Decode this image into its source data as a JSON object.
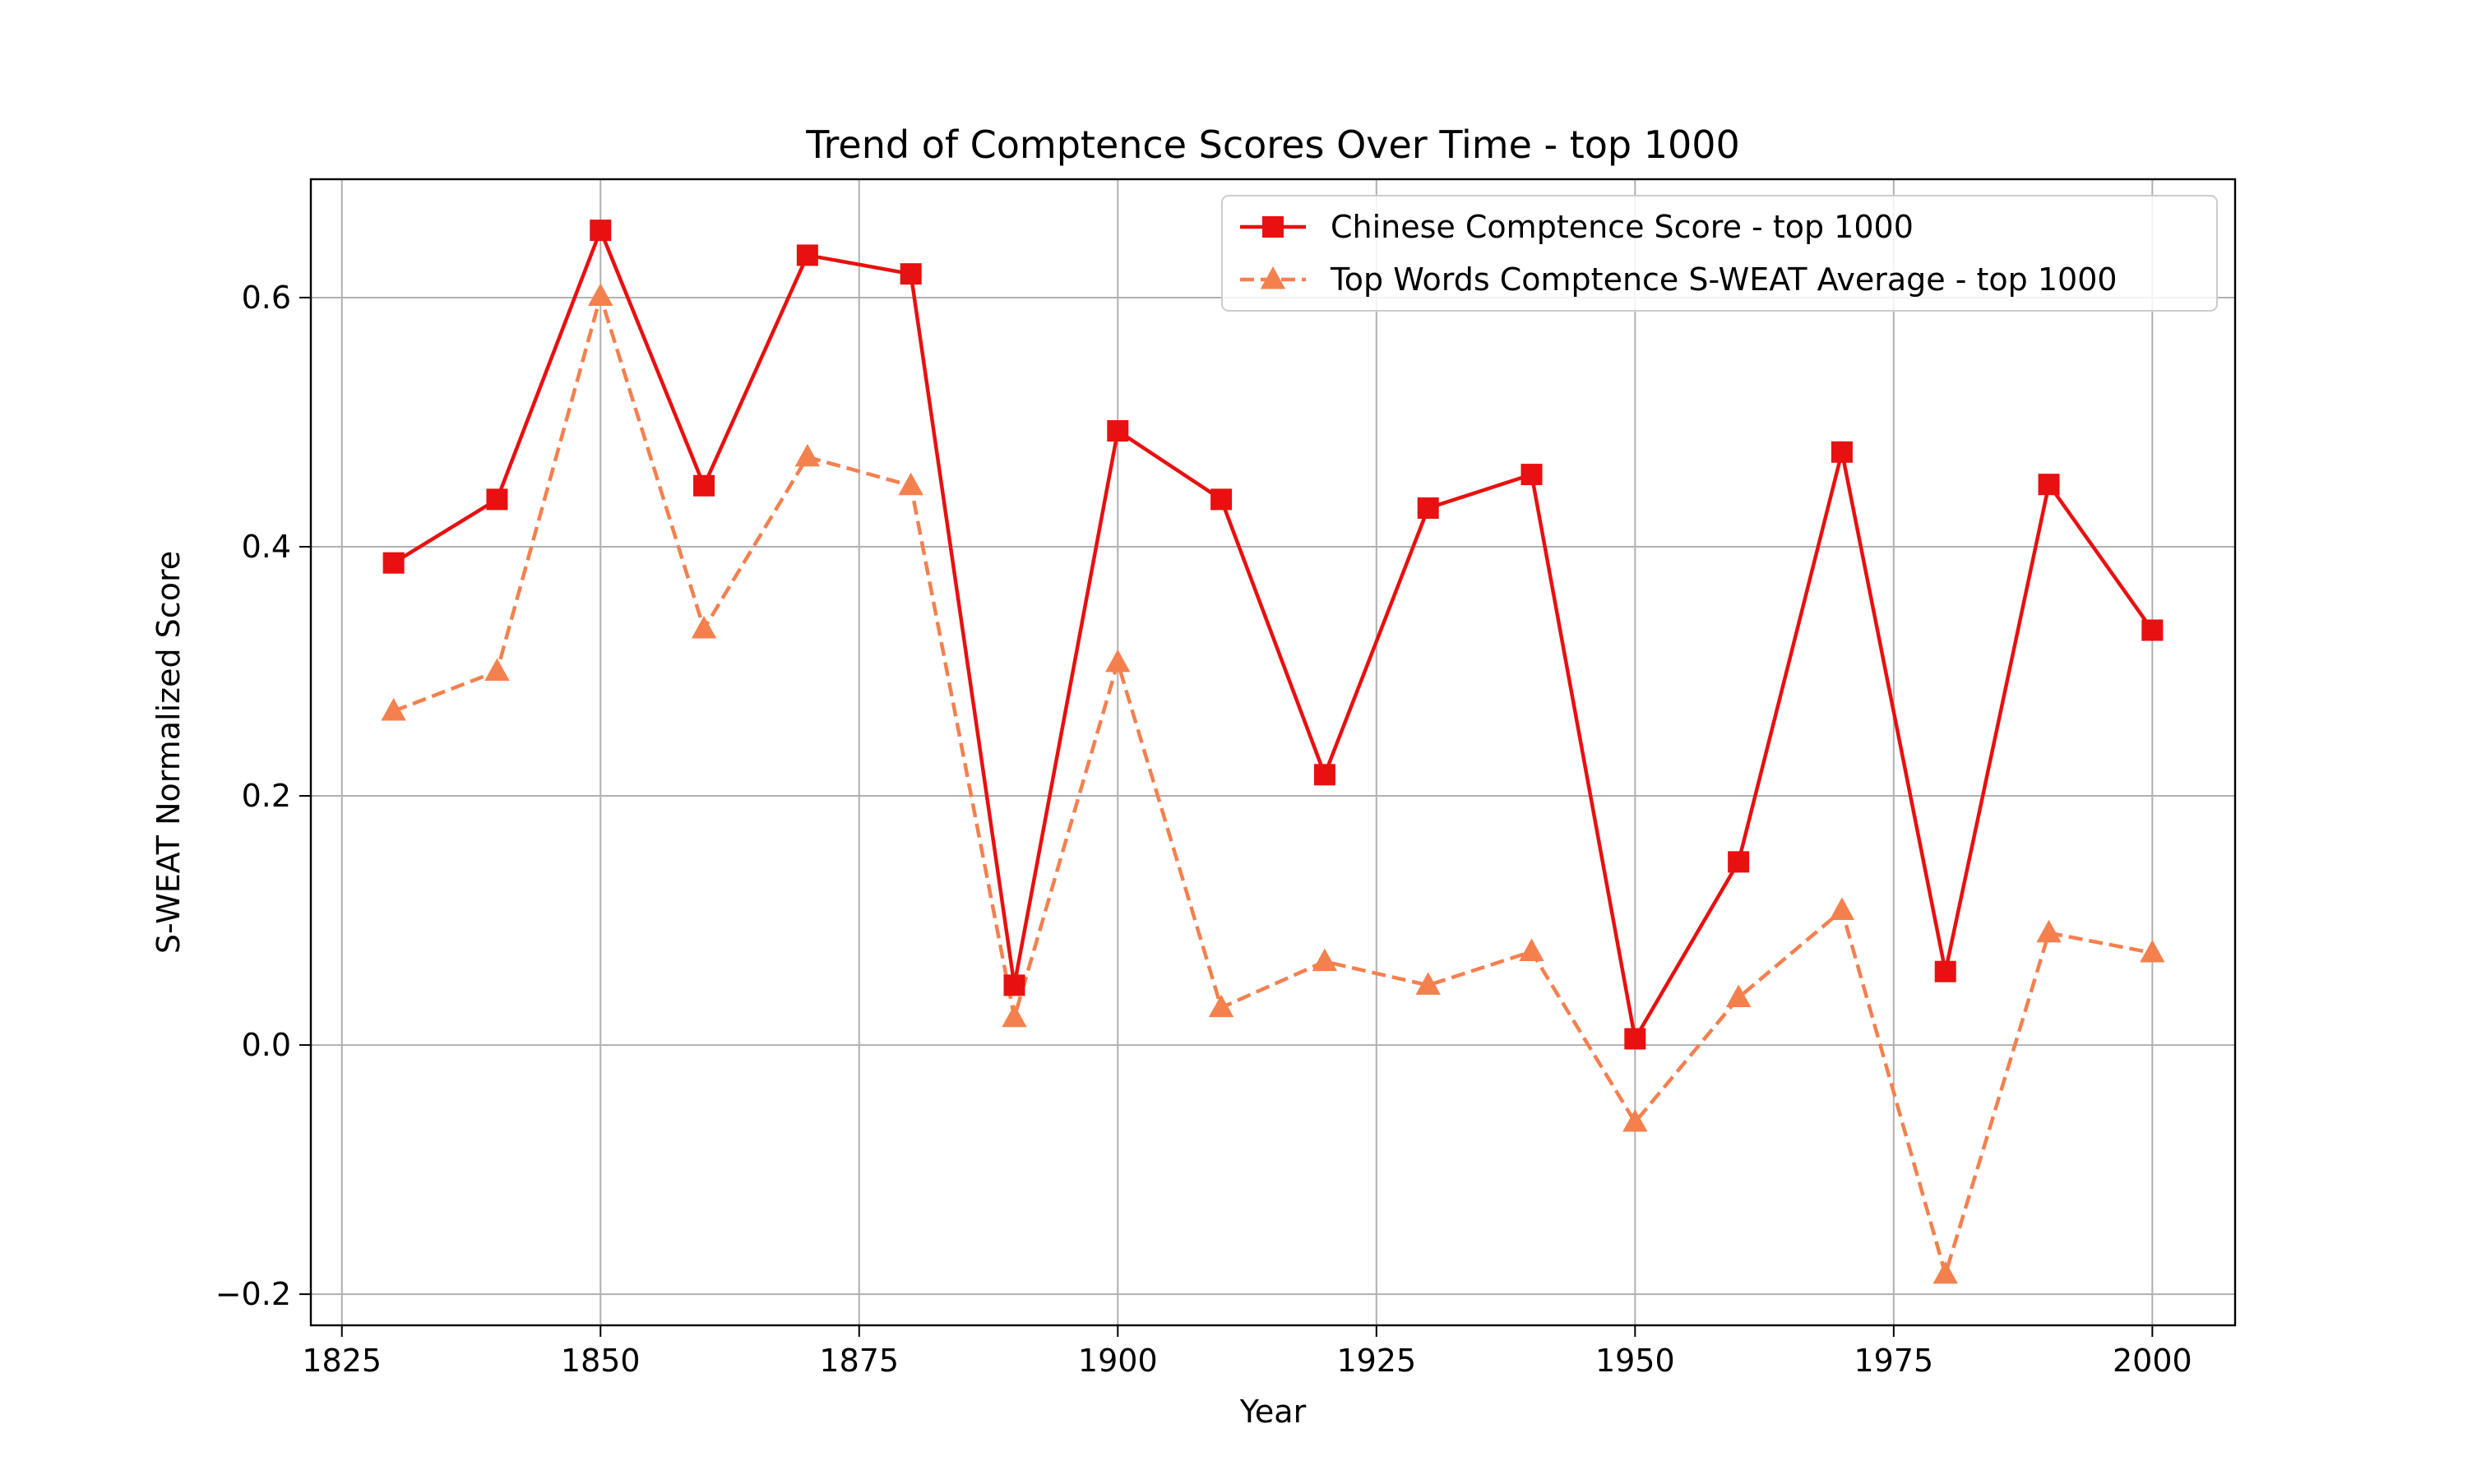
{
  "chart_data": {
    "type": "line",
    "title": "Trend of Comptence Scores Over Time - top 1000",
    "xlabel": "Year",
    "ylabel": "S-WEAT Normalized Score",
    "xlim": [
      1822,
      2008
    ],
    "ylim": [
      -0.225,
      0.695
    ],
    "xticks": [
      1825,
      1850,
      1875,
      1900,
      1925,
      1950,
      1975,
      2000
    ],
    "xtick_labels": [
      "1825",
      "1850",
      "1875",
      "1900",
      "1925",
      "1950",
      "1975",
      "2000"
    ],
    "yticks": [
      -0.2,
      0.0,
      0.2,
      0.4,
      0.6
    ],
    "ytick_labels": [
      "−0.2",
      "0.0",
      "0.2",
      "0.4",
      "0.6"
    ],
    "grid": true,
    "legend_position": "top-right",
    "x": [
      1830,
      1840,
      1850,
      1860,
      1870,
      1880,
      1890,
      1900,
      1910,
      1920,
      1930,
      1940,
      1950,
      1960,
      1970,
      1980,
      1990,
      2000
    ],
    "series": [
      {
        "name": "Chinese Comptence Score - top 1000",
        "color": "#e81010",
        "line_style": "solid",
        "marker": "square",
        "values": [
          0.387,
          0.438,
          0.654,
          0.449,
          0.634,
          0.619,
          0.048,
          0.493,
          0.438,
          0.217,
          0.431,
          0.458,
          0.005,
          0.147,
          0.476,
          0.059,
          0.45,
          0.333
        ]
      },
      {
        "name": "Top Words Comptence S-WEAT Average - top 1000",
        "color": "#f4804e",
        "line_style": "dashed",
        "marker": "triangle-up",
        "values": [
          0.268,
          0.3,
          0.601,
          0.334,
          0.472,
          0.449,
          0.022,
          0.307,
          0.03,
          0.067,
          0.048,
          0.075,
          -0.062,
          0.038,
          0.108,
          -0.184,
          0.09,
          0.074
        ]
      }
    ]
  }
}
